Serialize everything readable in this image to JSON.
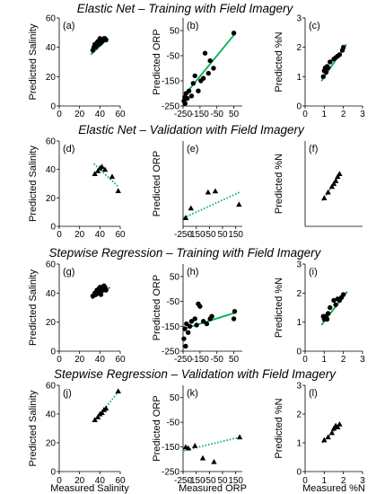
{
  "chart_data": [
    {
      "title": "Elastic Net – Training with Field Imagery",
      "panels": [
        {
          "label": "(a)",
          "type": "scatter",
          "marker": "circle",
          "fit_style": "solid",
          "xlim": [
            0,
            60
          ],
          "ylim": [
            0,
            60
          ],
          "xticks": [
            0,
            20,
            40,
            60
          ],
          "yticks": [
            0,
            20,
            40,
            60
          ],
          "ylabel": "Predicted Salinity",
          "xlabel": "",
          "points": [
            [
              33,
              38
            ],
            [
              34,
              40
            ],
            [
              35,
              42
            ],
            [
              36,
              40
            ],
            [
              37,
              43
            ],
            [
              38,
              44
            ],
            [
              39,
              42
            ],
            [
              40,
              46
            ],
            [
              41,
              43
            ],
            [
              42,
              44
            ],
            [
              43,
              45
            ],
            [
              44,
              46
            ],
            [
              45,
              46
            ],
            [
              46,
              45
            ]
          ],
          "fit": [
            [
              31,
              35
            ],
            [
              48,
              46
            ]
          ]
        },
        {
          "label": "(b)",
          "type": "scatter",
          "marker": "circle",
          "fit_style": "solid",
          "xlim": [
            -250,
            100
          ],
          "ylim": [
            -250,
            100
          ],
          "xticks": [
            -250,
            -150,
            -50,
            50
          ],
          "yticks": [
            -250,
            -150,
            -50,
            50
          ],
          "ylabel": "Predicted ORP",
          "xlabel": "",
          "points": [
            [
              -245,
              -230
            ],
            [
              -240,
              -215
            ],
            [
              -238,
              -240
            ],
            [
              -232,
              -200
            ],
            [
              -225,
              -220
            ],
            [
              -215,
              -190
            ],
            [
              -200,
              -210
            ],
            [
              -190,
              -160
            ],
            [
              -180,
              -130
            ],
            [
              -160,
              -190
            ],
            [
              -145,
              -150
            ],
            [
              -130,
              -140
            ],
            [
              -120,
              -40
            ],
            [
              -100,
              -120
            ],
            [
              -90,
              -70
            ],
            [
              -70,
              -100
            ],
            [
              50,
              40
            ]
          ],
          "fit": [
            [
              -245,
              -210
            ],
            [
              60,
              40
            ]
          ]
        },
        {
          "label": "(c)",
          "type": "scatter",
          "marker": "circle",
          "fit_style": "solid",
          "xlim": [
            0,
            3
          ],
          "ylim": [
            0,
            3
          ],
          "xticks": [
            0,
            1,
            2,
            3
          ],
          "yticks": [
            0,
            1,
            2,
            3
          ],
          "ylabel": "Predicted %N",
          "xlabel": "",
          "points": [
            [
              0.95,
              1.0
            ],
            [
              1.0,
              1.2
            ],
            [
              1.05,
              1.3
            ],
            [
              1.1,
              1.15
            ],
            [
              1.15,
              1.35
            ],
            [
              1.2,
              1.3
            ],
            [
              1.3,
              1.5
            ],
            [
              1.5,
              1.6
            ],
            [
              1.6,
              1.65
            ],
            [
              1.7,
              1.7
            ],
            [
              1.8,
              1.75
            ],
            [
              1.95,
              1.9
            ],
            [
              2.0,
              2.0
            ]
          ],
          "fit": [
            [
              0.85,
              0.85
            ],
            [
              2.15,
              2.1
            ]
          ]
        }
      ]
    },
    {
      "title": "Elastic Net – Validation with Field Imagery",
      "panels": [
        {
          "label": "(d)",
          "type": "scatter",
          "marker": "triangle",
          "fit_style": "dotted",
          "xlim": [
            0,
            60
          ],
          "ylim": [
            0,
            60
          ],
          "xticks": [
            0,
            20,
            40,
            60
          ],
          "yticks": [
            0,
            20,
            40,
            60
          ],
          "ylabel": "Predicted Salinity",
          "xlabel": "",
          "points": [
            [
              35,
              37
            ],
            [
              38,
              39
            ],
            [
              40,
              41
            ],
            [
              42,
              42
            ],
            [
              45,
              40
            ],
            [
              52,
              35
            ],
            [
              58,
              25
            ]
          ],
          "fit": [
            [
              34,
              44
            ],
            [
              58,
              28
            ]
          ]
        },
        {
          "label": "(e)",
          "type": "scatter",
          "marker": "triangle",
          "fit_style": "dotted",
          "xlim": [
            -250,
            200
          ],
          "ylim": [
            -250,
            100
          ],
          "xticks": [
            -250,
            -150,
            -50,
            50,
            150
          ],
          "yticks": [],
          "ylabel": "Predicted ORP",
          "xlabel": "",
          "points": [
            [
              -230,
              -215
            ],
            [
              -190,
              -175
            ],
            [
              -60,
              -110
            ],
            [
              -5,
              -105
            ],
            [
              175,
              -160
            ]
          ],
          "fit": [
            [
              -245,
              -215
            ],
            [
              180,
              -110
            ]
          ]
        },
        {
          "label": "(f)",
          "type": "scatter",
          "marker": "triangle",
          "fit_style": "dotted",
          "xlim": [
            0,
            3
          ],
          "ylim": [
            0,
            3
          ],
          "xticks": [],
          "yticks": [],
          "ylabel": "Predicted %N",
          "xlabel": "",
          "points": [
            [
              1.0,
              1.0
            ],
            [
              1.2,
              1.2
            ],
            [
              1.4,
              1.4
            ],
            [
              1.5,
              1.5
            ],
            [
              1.6,
              1.6
            ],
            [
              1.7,
              1.75
            ],
            [
              1.8,
              1.85
            ]
          ],
          "fit": [
            [
              0.9,
              0.9
            ],
            [
              1.9,
              1.9
            ]
          ]
        }
      ]
    },
    {
      "title": "Stepwise Regression – Training with Field Imagery",
      "panels": [
        {
          "label": "(g)",
          "type": "scatter",
          "marker": "circle",
          "fit_style": "solid",
          "xlim": [
            0,
            60
          ],
          "ylim": [
            0,
            60
          ],
          "xticks": [
            0,
            20,
            40,
            60
          ],
          "yticks": [
            0,
            20,
            40,
            60
          ],
          "ylabel": "Predicted Salinity",
          "xlabel": "",
          "points": [
            [
              33,
              38
            ],
            [
              35,
              40
            ],
            [
              36,
              39
            ],
            [
              37,
              42
            ],
            [
              38,
              40
            ],
            [
              38,
              41
            ],
            [
              39,
              43
            ],
            [
              40,
              42
            ],
            [
              40,
              44
            ],
            [
              41,
              39
            ],
            [
              42,
              44
            ],
            [
              43,
              42
            ],
            [
              44,
              43
            ],
            [
              44,
              45
            ],
            [
              45,
              44
            ],
            [
              46,
              42
            ]
          ],
          "fit": [
            [
              32,
              36
            ],
            [
              50,
              44
            ]
          ]
        },
        {
          "label": "(h)",
          "type": "scatter",
          "marker": "circle",
          "fit_style": "solid",
          "xlim": [
            -250,
            100
          ],
          "ylim": [
            -250,
            100
          ],
          "xticks": [
            -250,
            -150,
            -50,
            50
          ],
          "yticks": [
            -250,
            -150,
            -50,
            50
          ],
          "ylabel": "Predicted ORP",
          "xlabel": "",
          "points": [
            [
              -245,
              -200
            ],
            [
              -240,
              -160
            ],
            [
              -235,
              -230
            ],
            [
              -230,
              -140
            ],
            [
              -220,
              -175
            ],
            [
              -210,
              -150
            ],
            [
              -200,
              -130
            ],
            [
              -180,
              -120
            ],
            [
              -170,
              -145
            ],
            [
              -160,
              -60
            ],
            [
              -150,
              -70
            ],
            [
              -130,
              -130
            ],
            [
              -110,
              -140
            ],
            [
              -90,
              -120
            ],
            [
              -80,
              -110
            ],
            [
              50,
              -120
            ],
            [
              55,
              -90
            ]
          ],
          "fit": [
            [
              -245,
              -160
            ],
            [
              60,
              -95
            ]
          ]
        },
        {
          "label": "(i)",
          "type": "scatter",
          "marker": "circle",
          "fit_style": "solid",
          "xlim": [
            0,
            3
          ],
          "ylim": [
            0,
            3
          ],
          "xticks": [
            0,
            1,
            2,
            3
          ],
          "yticks": [
            0,
            1,
            2,
            3
          ],
          "ylabel": "Predicted %N",
          "xlabel": "",
          "points": [
            [
              0.95,
              1.2
            ],
            [
              1.0,
              1.1
            ],
            [
              1.05,
              1.2
            ],
            [
              1.1,
              1.15
            ],
            [
              1.15,
              1.1
            ],
            [
              1.2,
              1.3
            ],
            [
              1.3,
              1.5
            ],
            [
              1.5,
              1.75
            ],
            [
              1.6,
              1.6
            ],
            [
              1.7,
              1.8
            ],
            [
              1.8,
              1.75
            ],
            [
              1.9,
              1.85
            ],
            [
              2.0,
              1.95
            ]
          ],
          "fit": [
            [
              0.85,
              0.9
            ],
            [
              2.2,
              2.05
            ]
          ]
        }
      ]
    },
    {
      "title": "Stepwise Regression – Validation with Field Imagery",
      "panels": [
        {
          "label": "(j)",
          "type": "scatter",
          "marker": "triangle",
          "fit_style": "dotted",
          "xlim": [
            0,
            60
          ],
          "ylim": [
            0,
            60
          ],
          "xticks": [
            0,
            20,
            40,
            60
          ],
          "yticks": [
            0,
            20,
            40,
            60
          ],
          "ylabel": "Predicted Salinity",
          "xlabel": "Measured Salinity",
          "points": [
            [
              35,
              36
            ],
            [
              38,
              38
            ],
            [
              40,
              40
            ],
            [
              42,
              41
            ],
            [
              44,
              43
            ],
            [
              46,
              44
            ],
            [
              58,
              56
            ]
          ],
          "fit": [
            [
              34,
              35
            ],
            [
              59,
              56
            ]
          ]
        },
        {
          "label": "(k)",
          "type": "scatter",
          "marker": "triangle",
          "fit_style": "dotted",
          "xlim": [
            -250,
            200
          ],
          "ylim": [
            -250,
            100
          ],
          "xticks": [
            -250,
            -150,
            -50,
            50,
            150
          ],
          "yticks": [
            -250,
            -150,
            -50,
            50
          ],
          "ylabel": "Predicted ORP",
          "xlabel": "Measured ORP",
          "points": [
            [
              -230,
              -150
            ],
            [
              -210,
              -155
            ],
            [
              -160,
              -145
            ],
            [
              -100,
              -195
            ],
            [
              -15,
              -210
            ],
            [
              180,
              -110
            ]
          ],
          "fit": [
            [
              -245,
              -165
            ],
            [
              185,
              -110
            ]
          ]
        },
        {
          "label": "(l)",
          "type": "scatter",
          "marker": "triangle",
          "fit_style": "dotted",
          "xlim": [
            0,
            3
          ],
          "ylim": [
            0,
            3
          ],
          "xticks": [
            0,
            1,
            2,
            3
          ],
          "yticks": [
            0,
            1,
            2,
            3
          ],
          "ylabel": "Predicted %N",
          "xlabel": "Measured %N",
          "points": [
            [
              1.0,
              1.1
            ],
            [
              1.2,
              1.2
            ],
            [
              1.4,
              1.35
            ],
            [
              1.5,
              1.5
            ],
            [
              1.6,
              1.6
            ],
            [
              1.7,
              1.55
            ],
            [
              1.8,
              1.65
            ]
          ],
          "fit": [
            [
              0.9,
              1.0
            ],
            [
              1.9,
              1.7
            ]
          ]
        }
      ]
    }
  ],
  "colors": {
    "fit_line": "#00b050",
    "marker": "#000000",
    "axis": "#000000"
  }
}
